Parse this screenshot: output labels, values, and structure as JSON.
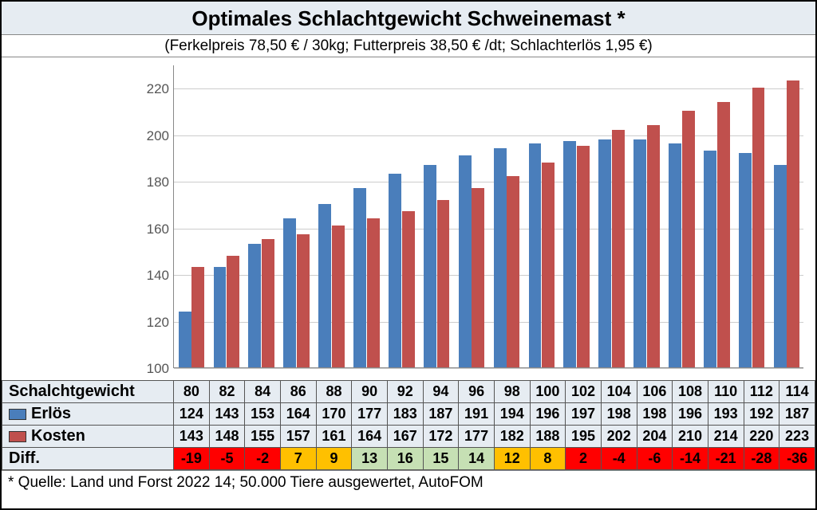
{
  "title": "Optimales Schlachtgewicht Schweinemast *",
  "subtitle": "(Ferkelpreis 78,50 € / 30kg; Futterpreis 38,50 € /dt; Schlachterlös 1,95 €)",
  "footnote": "* Quelle: Land und Forst 2022 14; 50.000 Tiere ausgewertet, AutoFOM",
  "chart": {
    "type": "grouped-bar",
    "ymin": 100,
    "ymax": 230,
    "ytick_step": 20,
    "yticks": [
      100,
      120,
      140,
      160,
      180,
      200,
      220
    ],
    "grid_color": "#cccccc",
    "axis_color": "#888888",
    "background_color": "#ffffff",
    "label_fontsize": 17,
    "series": [
      {
        "key": "erloes",
        "color": "#4a7ebb"
      },
      {
        "key": "kosten",
        "color": "#c0504d"
      }
    ],
    "categories": [
      80,
      82,
      84,
      86,
      88,
      90,
      92,
      94,
      96,
      98,
      100,
      102,
      104,
      106,
      108,
      110,
      112,
      114
    ]
  },
  "rows": {
    "schlachtgewicht": {
      "label": "Schalchtgewicht",
      "bg": "#e6ecf2",
      "values": [
        80,
        82,
        84,
        86,
        88,
        90,
        92,
        94,
        96,
        98,
        100,
        102,
        104,
        106,
        108,
        110,
        112,
        114
      ]
    },
    "erloes": {
      "label": "Erlös",
      "bg": "#e6ecf2",
      "swatch": "#4a7ebb",
      "values": [
        124,
        143,
        153,
        164,
        170,
        177,
        183,
        187,
        191,
        194,
        196,
        197,
        198,
        198,
        196,
        193,
        192,
        187
      ]
    },
    "kosten": {
      "label": "Kosten",
      "bg": "#e6ecf2",
      "swatch": "#c0504d",
      "values": [
        143,
        148,
        155,
        157,
        161,
        164,
        167,
        172,
        177,
        182,
        188,
        195,
        202,
        204,
        210,
        214,
        220,
        223
      ]
    },
    "diff": {
      "label": "Diff.",
      "bg": "#e6ecf2",
      "values": [
        -19,
        -5,
        -2,
        7,
        9,
        13,
        16,
        15,
        14,
        12,
        8,
        2,
        -4,
        -6,
        -14,
        -21,
        -28,
        -36
      ]
    }
  },
  "diff_colors": {
    "neg": "#ff0000",
    "low": "#ffc000",
    "high": "#c6e0b4"
  },
  "title_bg": "#e6ecf2",
  "cell_bg": "#e6ecf2",
  "title_fontsize": 26,
  "subtitle_fontsize": 19,
  "table_fontsize": 18
}
